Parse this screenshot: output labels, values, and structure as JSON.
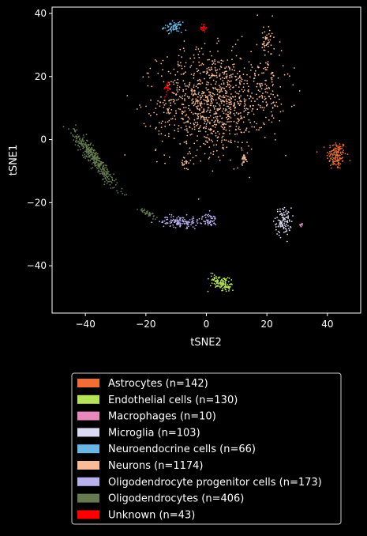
{
  "chart_data": {
    "type": "scatter",
    "xlabel": "tSNE2",
    "ylabel": "tSNE1",
    "xlim": [
      -51,
      51
    ],
    "ylim": [
      -55,
      42
    ],
    "xticks": [
      -40,
      -20,
      0,
      20,
      40
    ],
    "yticks": [
      40,
      20,
      0,
      -20,
      -40
    ],
    "xtick_labels": [
      "−40",
      "−20",
      "0",
      "20",
      "40"
    ],
    "ytick_labels": [
      "40",
      "20",
      "0",
      "−20",
      "−40"
    ],
    "grid": false,
    "legend_position": "below",
    "series": [
      {
        "name": "Astrocytes (n=142)",
        "color": "#f06d34",
        "count": 142,
        "clusters": [
          {
            "cx": 43,
            "cy": -5,
            "sx": 1.6,
            "sy": 2.3,
            "w": 1
          }
        ]
      },
      {
        "name": "Endothelial cells (n=130)",
        "color": "#b6e35a",
        "count": 130,
        "clusters": [
          {
            "cx": 5,
            "cy": -45.5,
            "sx": 1.6,
            "sy": 1.6,
            "w": 1,
            "slope": -0.55
          }
        ]
      },
      {
        "name": "Macrophages (n=10)",
        "color": "#e889bd",
        "count": 10,
        "clusters": [
          {
            "cx": 31.5,
            "cy": -27,
            "sx": 0.3,
            "sy": 0.4,
            "w": 1
          }
        ]
      },
      {
        "name": "Microglia (n=103)",
        "color": "#dcdaf3",
        "count": 103,
        "clusters": [
          {
            "cx": 25.5,
            "cy": -26,
            "sx": 1.3,
            "sy": 2.2,
            "w": 1
          }
        ]
      },
      {
        "name": "Neuroendocrine cells (n=66)",
        "color": "#6ab7e4",
        "count": 66,
        "clusters": [
          {
            "cx": -11,
            "cy": 35.6,
            "sx": 1.5,
            "sy": 0.8,
            "w": 1
          }
        ]
      },
      {
        "name": "Neurons (n=1174)",
        "color": "#f9bc96",
        "count": 1174,
        "clusters": [
          {
            "cx": 2,
            "cy": 12,
            "sx": 9,
            "sy": 8,
            "w": 0.82
          },
          {
            "cx": 20,
            "cy": 18,
            "sx": 3,
            "sy": 8,
            "w": 0.1
          },
          {
            "cx": 20,
            "cy": 31,
            "sx": 1,
            "sy": 2,
            "w": 0.03
          },
          {
            "cx": -7,
            "cy": -7.5,
            "sx": 0.6,
            "sy": 1.2,
            "w": 0.02
          },
          {
            "cx": 12.5,
            "cy": -6,
            "sx": 0.5,
            "sy": 0.8,
            "w": 0.02
          },
          {
            "cx": -14,
            "cy": 4,
            "sx": 1.5,
            "sy": 3,
            "w": 0.01
          }
        ]
      },
      {
        "name": "Oligodendrocyte progenitor cells (n=173)",
        "color": "#b9b0ee",
        "count": 173,
        "clusters": [
          {
            "cx": -8.5,
            "cy": -26,
            "sx": 3.2,
            "sy": 0.9,
            "w": 0.72
          },
          {
            "cx": 1,
            "cy": -25.5,
            "sx": 1.2,
            "sy": 1,
            "w": 0.28
          }
        ]
      },
      {
        "name": "Oligodendrocytes (n=406)",
        "color": "#667a50",
        "count": 406,
        "clusters": [
          {
            "cx": -37,
            "cy": -6,
            "sx": 3.5,
            "sy": 1.6,
            "w": 0.9,
            "slope": -1.25
          },
          {
            "cx": -19,
            "cy": -23.5,
            "sx": 1.6,
            "sy": 0.6,
            "w": 0.1,
            "slope": -0.4
          }
        ]
      },
      {
        "name": "Unknown (n=43)",
        "color": "#ff0000",
        "count": 43,
        "clusters": [
          {
            "cx": -1,
            "cy": 35.5,
            "sx": 0.5,
            "sy": 0.7,
            "w": 0.55
          },
          {
            "cx": -13,
            "cy": 16,
            "sx": 0.6,
            "sy": 1.2,
            "w": 0.45
          }
        ]
      }
    ]
  }
}
